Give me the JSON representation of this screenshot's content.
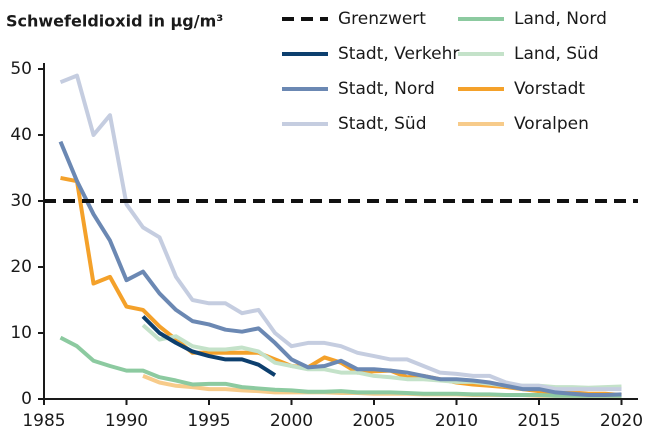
{
  "chart_data": {
    "type": "line",
    "title": "Schwefeldioxid in µg/m³",
    "x": [
      1986,
      1987,
      1988,
      1989,
      1990,
      1991,
      1992,
      1993,
      1994,
      1995,
      1996,
      1997,
      1998,
      1999,
      2000,
      2001,
      2002,
      2003,
      2004,
      2005,
      2006,
      2007,
      2008,
      2009,
      2010,
      2011,
      2012,
      2013,
      2014,
      2015,
      2016,
      2017,
      2018,
      2019,
      2020
    ],
    "threshold": {
      "name": "Grenzwert",
      "value": 30,
      "color": "#111111"
    },
    "series": [
      {
        "name": "Stadt, Verkehr",
        "color": "#0d3f6e",
        "values": [
          null,
          null,
          null,
          null,
          null,
          12.5,
          10,
          8.5,
          7.2,
          6.5,
          6,
          6,
          5.2,
          3.6,
          null,
          null,
          null,
          null,
          null,
          null,
          null,
          null,
          null,
          null,
          null,
          null,
          null,
          null,
          null,
          null,
          null,
          null,
          null,
          null,
          null
        ]
      },
      {
        "name": "Stadt, Nord",
        "color": "#6b88b3",
        "values": [
          39,
          33,
          28,
          24,
          18,
          19.3,
          16,
          13.5,
          11.8,
          11.3,
          10.5,
          10.2,
          10.7,
          8.5,
          6,
          4.8,
          5,
          5.8,
          4.5,
          4.5,
          4.3,
          4,
          3.5,
          3,
          3,
          2.8,
          2.5,
          2,
          1.5,
          1.5,
          1,
          0.8,
          0.6,
          0.6,
          0.7
        ]
      },
      {
        "name": "Stadt, Süd",
        "color": "#c5cde0",
        "values": [
          48,
          49,
          40,
          43,
          29.5,
          26,
          24.5,
          18.5,
          15,
          14.5,
          14.5,
          13,
          13.5,
          10,
          8,
          8.5,
          8.5,
          8,
          7,
          6.5,
          6,
          6,
          5,
          4,
          3.8,
          3.5,
          3.5,
          2.5,
          2,
          2,
          1.5,
          1.5,
          1.5,
          1.5,
          1.5
        ]
      },
      {
        "name": "Land, Nord",
        "color": "#8ccaa0",
        "values": [
          9.3,
          8,
          5.8,
          5,
          4.3,
          4.3,
          3.3,
          2.8,
          2.2,
          2.3,
          2.3,
          1.8,
          1.6,
          1.4,
          1.3,
          1.1,
          1.1,
          1.2,
          1,
          1,
          1,
          0.9,
          0.8,
          0.8,
          0.8,
          0.7,
          0.7,
          0.6,
          0.6,
          0.6,
          0.5,
          0.5,
          0.5,
          0.5,
          0.5
        ]
      },
      {
        "name": "Land, Süd",
        "color": "#c4e2c9",
        "values": [
          null,
          null,
          null,
          null,
          null,
          11.2,
          9,
          9.5,
          8,
          7.5,
          7.5,
          7.8,
          7.2,
          5.5,
          5,
          4.5,
          4.5,
          4,
          4,
          3.5,
          3.3,
          3,
          3,
          2.8,
          2.6,
          2.6,
          2.3,
          2,
          2,
          2,
          1.8,
          1.8,
          1.7,
          1.8,
          1.9
        ]
      },
      {
        "name": "Vorstadt",
        "color": "#f4a12a",
        "values": [
          33.5,
          33,
          17.5,
          18.5,
          14,
          13.5,
          11,
          9,
          7,
          7,
          7,
          7,
          7,
          6,
          5,
          4.8,
          6.3,
          5.5,
          4,
          4.2,
          4.3,
          3.3,
          3.5,
          3,
          2.5,
          2.2,
          2,
          1.8,
          1.5,
          1.2,
          1,
          1,
          0.8,
          0.8,
          0.6
        ]
      },
      {
        "name": "Voralpen",
        "color": "#f7cb8a",
        "values": [
          null,
          null,
          null,
          null,
          null,
          3.5,
          2.5,
          2,
          1.8,
          1.5,
          1.5,
          1.3,
          1.2,
          1,
          1,
          1,
          1,
          0.9,
          0.9,
          0.8,
          0.8,
          0.8,
          0.7,
          0.7,
          0.7,
          0.6,
          0.6,
          0.6,
          0.6,
          0.5,
          0.5,
          0.5,
          0.5,
          0.5,
          0.5
        ]
      }
    ],
    "xlim": [
      1985,
      2021
    ],
    "xticks": [
      1985,
      1990,
      1995,
      2000,
      2005,
      2010,
      2015,
      2020
    ],
    "ylim": [
      0,
      50
    ],
    "yticks": [
      0,
      10,
      20,
      30,
      40,
      50
    ],
    "grid": false
  }
}
